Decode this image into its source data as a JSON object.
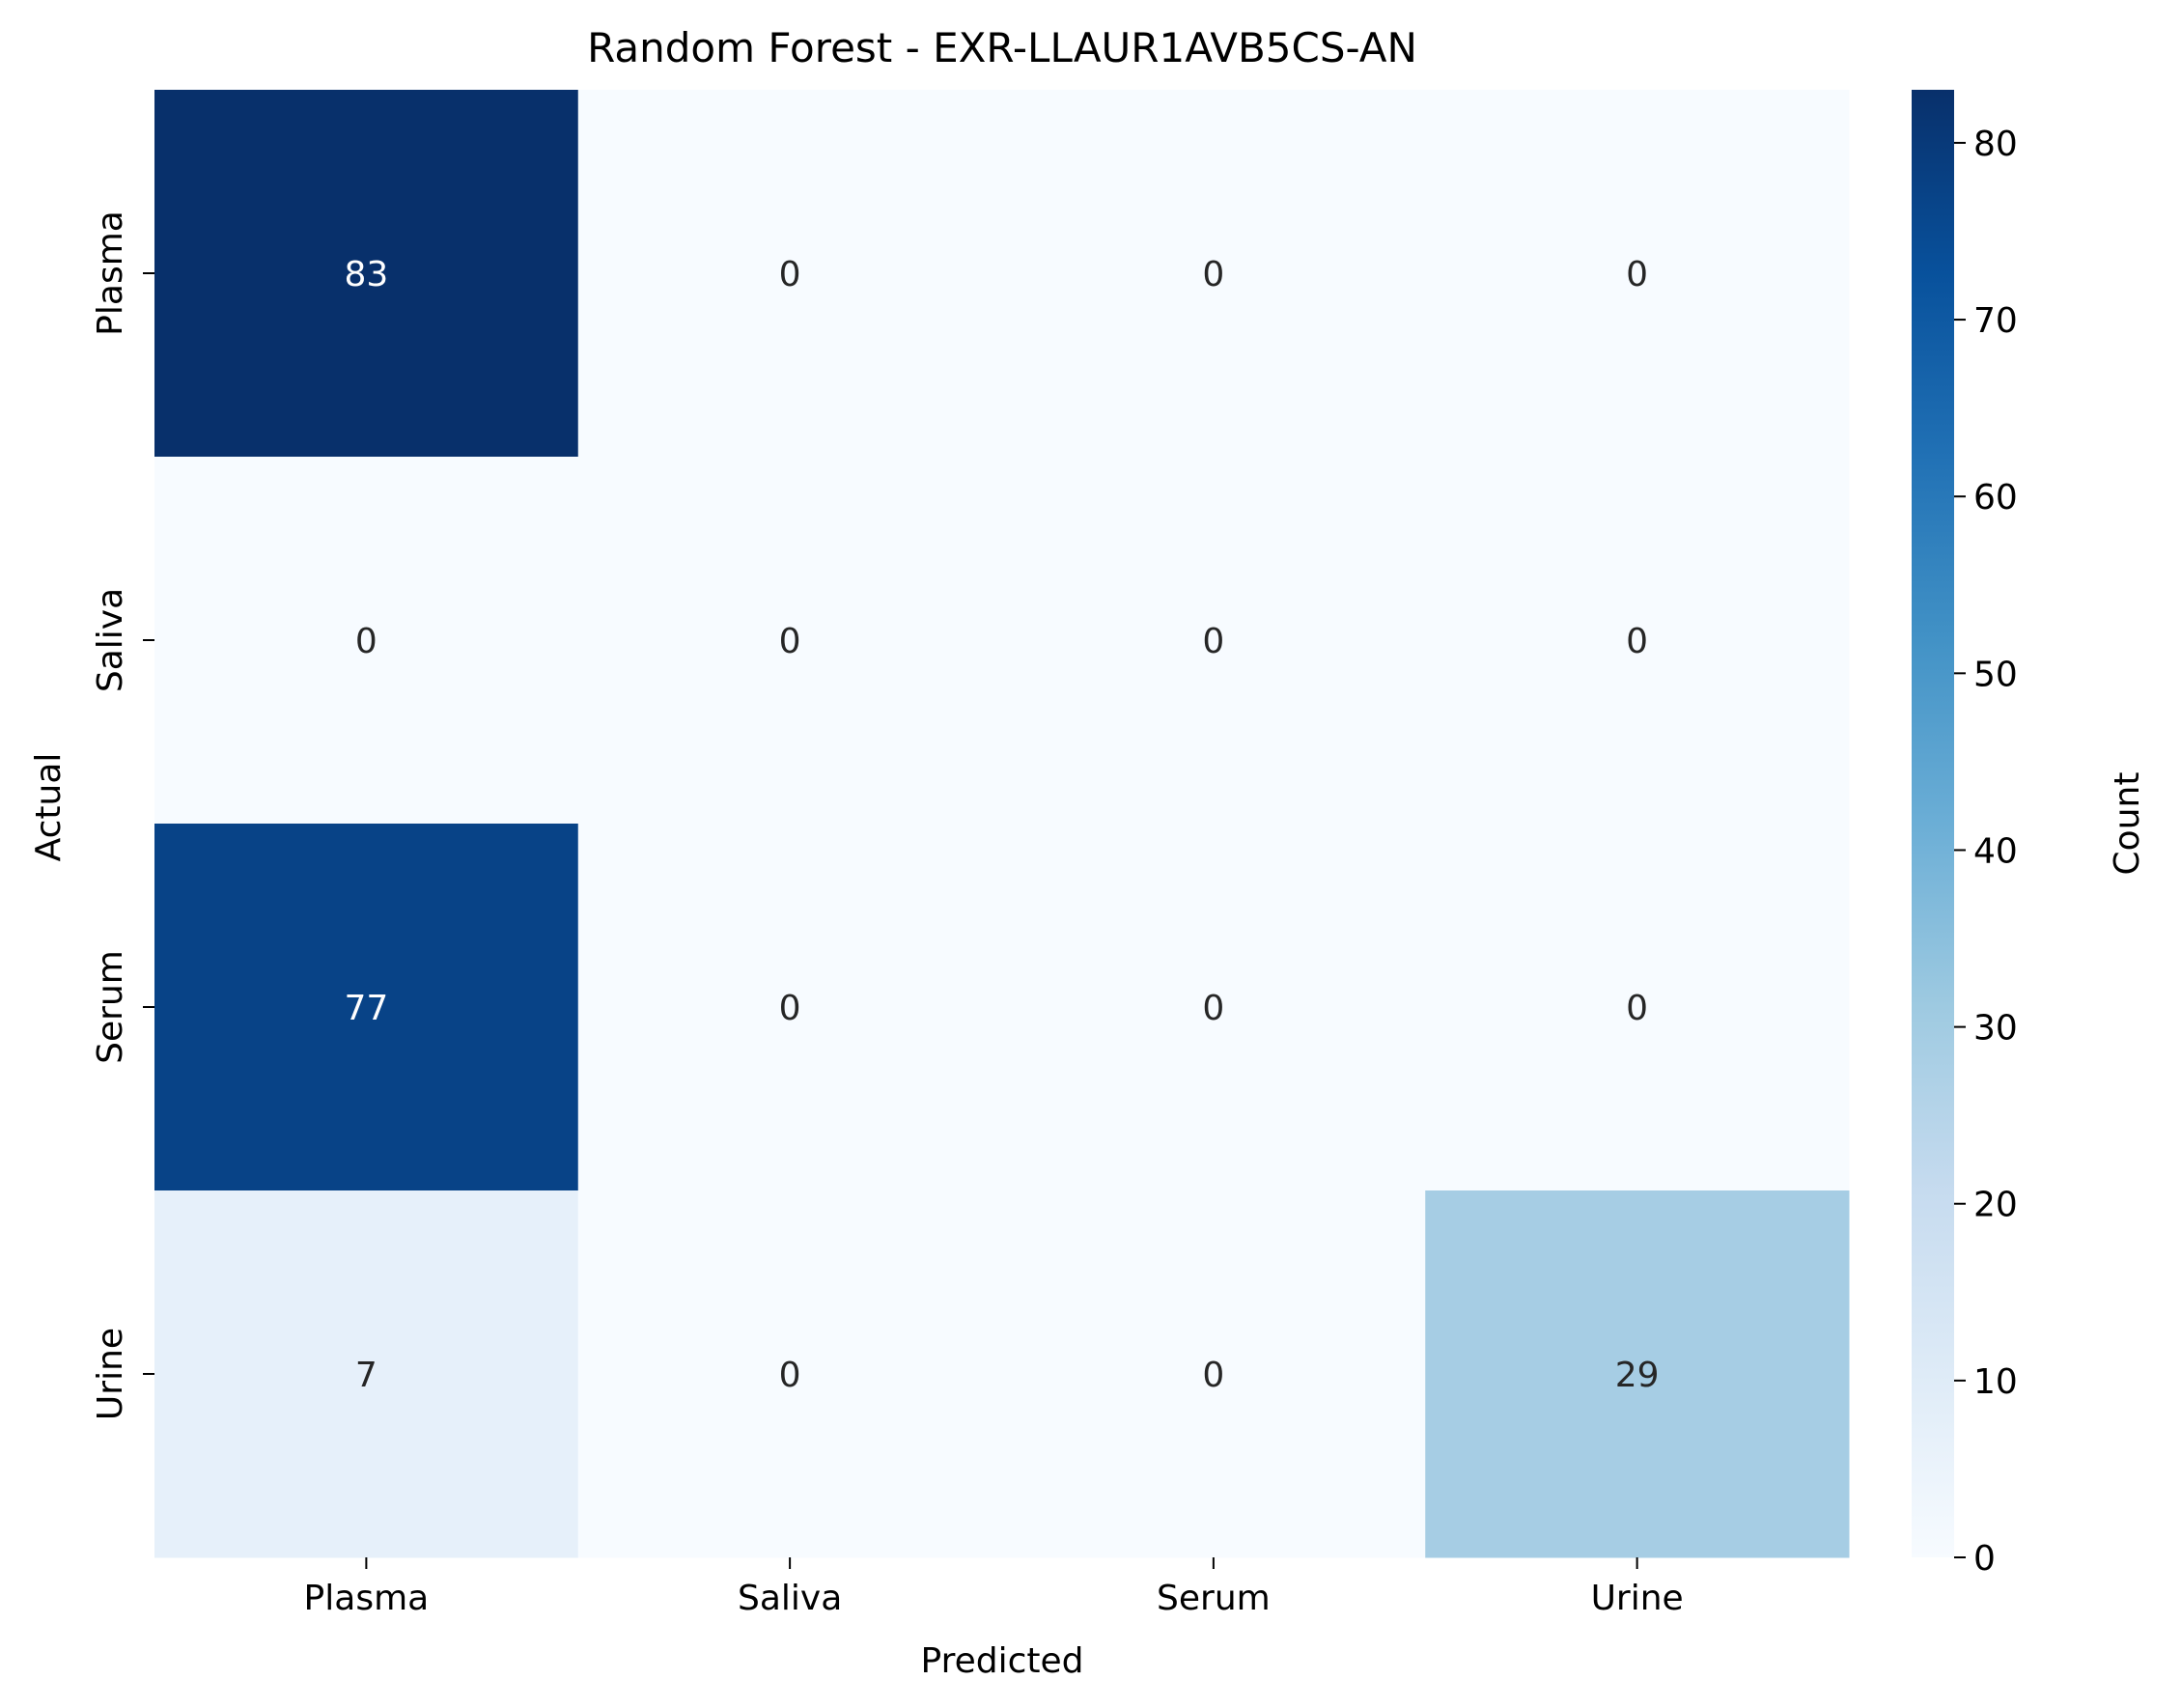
{
  "chart_data": {
    "type": "heatmap",
    "title": "Random Forest - EXR-LLAUR1AVB5CS-AN",
    "xlabel": "Predicted",
    "ylabel": "Actual",
    "x_categories": [
      "Plasma",
      "Saliva",
      "Serum",
      "Urine"
    ],
    "y_categories": [
      "Plasma",
      "Saliva",
      "Serum",
      "Urine"
    ],
    "values": [
      [
        83,
        0,
        0,
        0
      ],
      [
        0,
        0,
        0,
        0
      ],
      [
        77,
        0,
        0,
        0
      ],
      [
        7,
        0,
        0,
        29
      ]
    ],
    "colorbar": {
      "label": "Count",
      "range": [
        0,
        83
      ],
      "ticks": [
        0,
        10,
        20,
        30,
        40,
        50,
        60,
        70,
        80
      ]
    },
    "colormap": "Blues",
    "annot_color_dark": "#262626",
    "annot_color_light": "#ffffff"
  }
}
